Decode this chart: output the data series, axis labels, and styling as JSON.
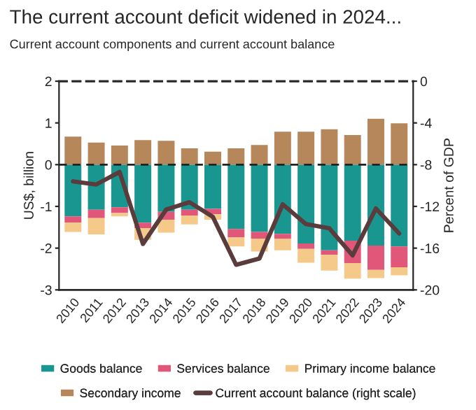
{
  "chart_data": {
    "type": "bar",
    "title": "The current account deficit widened in 2024...",
    "subtitle": "Current account components and current account balance",
    "ylabel": "US$, billion",
    "y2label": "Percent of GDP",
    "categories": [
      "2010",
      "2011",
      "2012",
      "2013",
      "2014",
      "2015",
      "2016",
      "2017",
      "2018",
      "2019",
      "2020",
      "2021",
      "2022",
      "2023",
      "2024"
    ],
    "stacked": true,
    "series": [
      {
        "name": "Goods balance",
        "color": "#1a9690",
        "values": [
          -1.24,
          -1.08,
          -1.02,
          -1.39,
          -1.13,
          -1.08,
          -1.06,
          -1.54,
          -1.61,
          -1.66,
          -1.89,
          -2.05,
          -1.82,
          -1.94,
          -1.96
        ]
      },
      {
        "name": "Services balance",
        "color": "#e0577a",
        "values": [
          -0.15,
          -0.2,
          -0.14,
          -0.13,
          -0.19,
          -0.14,
          -0.13,
          -0.2,
          -0.16,
          -0.11,
          -0.13,
          -0.11,
          -0.54,
          -0.58,
          -0.5
        ]
      },
      {
        "name": "Primary income balance",
        "color": "#f5c98a",
        "values": [
          -0.22,
          -0.39,
          -0.08,
          -0.28,
          -0.31,
          -0.21,
          -0.13,
          -0.22,
          -0.31,
          -0.28,
          -0.33,
          -0.38,
          -0.37,
          -0.2,
          -0.19
        ]
      },
      {
        "name": "Secondary income",
        "color": "#b5875a",
        "values": [
          0.67,
          0.53,
          0.46,
          0.59,
          0.57,
          0.39,
          0.31,
          0.39,
          0.47,
          0.79,
          0.79,
          0.85,
          0.71,
          1.1,
          0.99
        ]
      },
      {
        "name": "Current account balance (right scale)",
        "type": "line",
        "axis": "y2",
        "color": "#5a3c3c",
        "values": [
          -9.6,
          -9.9,
          -8.7,
          -15.6,
          -12.3,
          -11.6,
          -13.0,
          -17.6,
          -17.0,
          -11.8,
          -13.7,
          -14.1,
          -16.7,
          -12.2,
          -14.6
        ]
      }
    ],
    "ylim": [
      -3,
      2
    ],
    "yticks": [
      -3,
      -2,
      -1,
      0,
      1,
      2
    ],
    "y2lim": [
      -20,
      0
    ],
    "y2ticks": [
      -20,
      -16,
      -12,
      -8,
      -4,
      0
    ],
    "ref_lines": [
      {
        "axis": "y",
        "value": 0,
        "color": "#222222",
        "line_style": "dashed"
      }
    ],
    "legend": "bottom",
    "grid": false
  }
}
